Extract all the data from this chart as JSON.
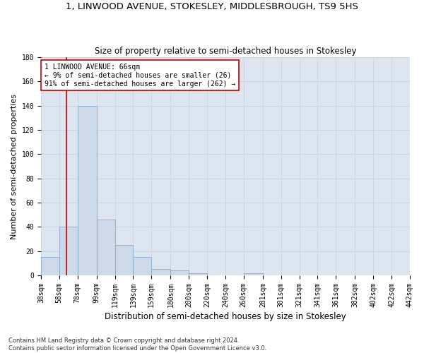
{
  "title": "1, LINWOOD AVENUE, STOKESLEY, MIDDLESBROUGH, TS9 5HS",
  "subtitle": "Size of property relative to semi-detached houses in Stokesley",
  "xlabel": "Distribution of semi-detached houses by size in Stokesley",
  "ylabel": "Number of semi-detached properties",
  "bin_edges": [
    38,
    58,
    78,
    99,
    119,
    139,
    159,
    180,
    200,
    220,
    240,
    260,
    281,
    301,
    321,
    341,
    361,
    382,
    402,
    422,
    442
  ],
  "bar_heights": [
    15,
    40,
    140,
    46,
    25,
    15,
    5,
    4,
    2,
    0,
    0,
    2,
    0,
    0,
    0,
    0,
    0,
    0,
    0,
    0
  ],
  "bar_color": "#ccd9e8",
  "bar_edge_color": "#88aacc",
  "ylim": [
    0,
    180
  ],
  "property_size": 66,
  "property_line_color": "#cc0000",
  "annotation_text": "1 LINWOOD AVENUE: 66sqm\n← 9% of semi-detached houses are smaller (26)\n91% of semi-detached houses are larger (262) →",
  "annotation_box_color": "#cc0000",
  "grid_color": "#c8d4e0",
  "background_color": "#dde6f0",
  "footer_text": "Contains HM Land Registry data © Crown copyright and database right 2024.\nContains public sector information licensed under the Open Government Licence v3.0.",
  "title_fontsize": 9.5,
  "subtitle_fontsize": 8.5,
  "xlabel_fontsize": 8.5,
  "ylabel_fontsize": 8,
  "tick_fontsize": 7,
  "annotation_fontsize": 7,
  "footer_fontsize": 6
}
